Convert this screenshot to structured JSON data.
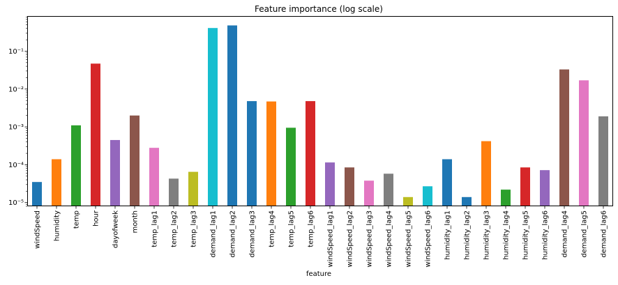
{
  "chart_data": {
    "type": "bar",
    "title": "Feature importance (log scale)",
    "xlabel": "feature",
    "ylabel": "",
    "yscale": "log",
    "ylim": [
      8e-06,
      0.85
    ],
    "ytick_labels": [
      "10⁻⁵",
      "10⁻⁴",
      "10⁻³",
      "10⁻²",
      "10⁻¹"
    ],
    "ytick_values": [
      1e-05,
      0.0001,
      0.001,
      0.01,
      0.1
    ],
    "grid": false,
    "legend": "none",
    "categories": [
      "windSpeed",
      "humidity",
      "temp",
      "hour",
      "dayofweek",
      "month",
      "temp_lag1",
      "temp_lag2",
      "temp_lag3",
      "demand_lag1",
      "demand_lag2",
      "demand_lag3",
      "temp_lag4",
      "temp_lag5",
      "temp_lag6",
      "windSpeed_lag1",
      "windSpeed_lag2",
      "windSpeed_lag3",
      "windSpeed_lag4",
      "windSpeed_lag5",
      "windSpeed_lag6",
      "humidity_lag1",
      "humidity_lag2",
      "humidity_lag3",
      "humidity_lag4",
      "humidity_lag5",
      "humidity_lag6",
      "demand_lag4",
      "demand_lag5",
      "demand_lag6"
    ],
    "values": [
      3.5e-05,
      0.00014,
      0.0011,
      0.047,
      0.00045,
      0.002,
      0.00028,
      4.3e-05,
      6.5e-05,
      0.41,
      0.48,
      0.0048,
      0.0047,
      0.00095,
      0.0048,
      0.000115,
      8.5e-05,
      3.8e-05,
      5.8e-05,
      1.4e-05,
      2.7e-05,
      0.00014,
      1.4e-05,
      0.00042,
      2.2e-05,
      8.5e-05,
      7.2e-05,
      0.033,
      0.017,
      0.0019
    ],
    "colors": [
      "#1f77b4",
      "#ff7f0e",
      "#2ca02c",
      "#d62728",
      "#9467bd",
      "#8c564b",
      "#e377c2",
      "#7f7f7f",
      "#bcbd22",
      "#17becf",
      "#1f77b4",
      "#1f77b4",
      "#ff7f0e",
      "#2ca02c",
      "#d62728",
      "#9467bd",
      "#8c564b",
      "#e377c2",
      "#7f7f7f",
      "#bcbd22",
      "#17becf",
      "#1f77b4",
      "#1f77b4",
      "#ff7f0e",
      "#2ca02c",
      "#d62728",
      "#9467bd",
      "#8c564b",
      "#e377c2",
      "#7f7f7f"
    ]
  }
}
